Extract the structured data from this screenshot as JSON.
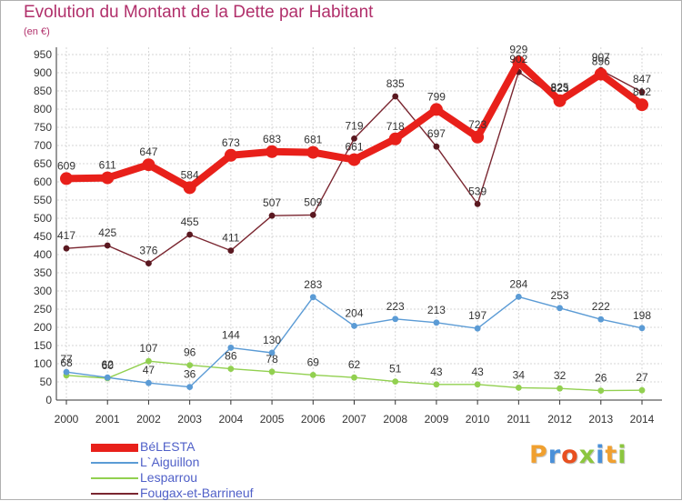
{
  "title": "Evolution du Montant de la Dette par Habitant",
  "subtitle": "(en €)",
  "logo": {
    "text": "Proxiti",
    "letters": [
      {
        "ch": "P",
        "color": "#f0a030"
      },
      {
        "ch": "r",
        "color": "#4a90d9"
      },
      {
        "ch": "o",
        "color": "#e85020"
      },
      {
        "ch": "x",
        "color": "#8cc63f"
      },
      {
        "ch": "i",
        "color": "#4a90d9"
      },
      {
        "ch": "t",
        "color": "#f0a030"
      },
      {
        "ch": "i",
        "color": "#8cc63f"
      }
    ]
  },
  "chart_data": {
    "type": "line",
    "title": "Evolution du Montant de la Dette par Habitant",
    "subtitle": "(en €)",
    "xlabel": "",
    "ylabel": "",
    "x": [
      "2000",
      "2001",
      "2002",
      "2003",
      "2004",
      "2005",
      "2006",
      "2007",
      "2008",
      "2009",
      "2010",
      "2011",
      "2012",
      "2013",
      "2014"
    ],
    "ylim": [
      0,
      950
    ],
    "yticks": [
      0,
      50,
      100,
      150,
      200,
      250,
      300,
      350,
      400,
      450,
      500,
      550,
      600,
      650,
      700,
      750,
      800,
      850,
      900,
      950
    ],
    "grid": true,
    "legend_position": "bottom-left",
    "series": [
      {
        "name": "BéLESTA",
        "color": "#e8201a",
        "values": [
          609,
          611,
          647,
          584,
          673,
          683,
          681,
          661,
          718,
          799,
          723,
          929,
          823,
          896,
          812
        ]
      },
      {
        "name": "L`Aiguillon",
        "color": "#5b9bd5",
        "values": [
          77,
          62,
          47,
          36,
          144,
          130,
          283,
          204,
          223,
          213,
          197,
          284,
          253,
          222,
          198
        ]
      },
      {
        "name": "Lesparrou",
        "color": "#92d050",
        "values": [
          68,
          60,
          107,
          96,
          86,
          78,
          69,
          62,
          51,
          43,
          43,
          34,
          32,
          26,
          27
        ]
      },
      {
        "name": "Fougax-et-Barrineuf",
        "color": "#7a2630",
        "values": [
          417,
          425,
          376,
          455,
          411,
          507,
          509,
          719,
          835,
          697,
          539,
          902,
          825,
          907,
          847
        ]
      }
    ]
  }
}
